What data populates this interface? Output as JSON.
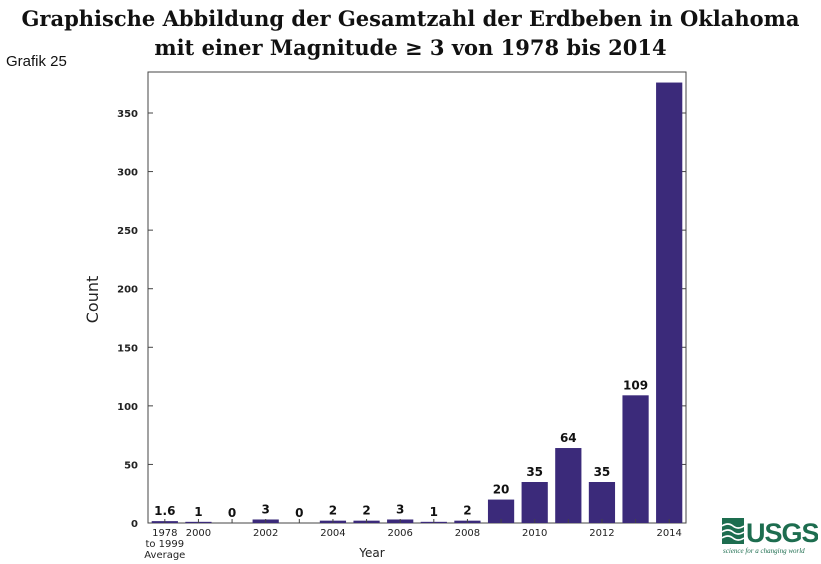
{
  "header": {
    "title_line1": "Graphische Abbildung der Gesamtzahl der Erdbeben in Oklahoma",
    "title_line2": "mit einer Magnitude ≥ 3 von 1978 bis 2014",
    "figure_label": "Grafik 25"
  },
  "logo": {
    "name": "USGS",
    "tagline": "science for a changing world",
    "color": "#1d6d4f"
  },
  "chart_data": {
    "type": "bar",
    "title": "Graphische Abbildung der Gesamtzahl der Erdbeben in Oklahoma mit einer Magnitude ≥ 3 von 1978 bis 2014",
    "xlabel": "Year",
    "ylabel": "Count",
    "ylim": [
      0,
      385
    ],
    "yticks": [
      0,
      50,
      100,
      150,
      200,
      250,
      300,
      350
    ],
    "grid": false,
    "bar_color": "#3b2a7a",
    "categories": [
      "1978 to 1999 Average",
      "2000",
      "2001",
      "2002",
      "2003",
      "2004",
      "2005",
      "2006",
      "2007",
      "2008",
      "2009",
      "2010",
      "2011",
      "2012",
      "2013",
      "2014"
    ],
    "values": [
      1.6,
      1,
      0,
      3,
      0,
      2,
      2,
      3,
      1,
      2,
      20,
      35,
      64,
      35,
      109,
      376
    ],
    "data_labels": [
      "1.6",
      "1",
      "0",
      "3",
      "0",
      "2",
      "2",
      "3",
      "1",
      "2",
      "20",
      "35",
      "64",
      "35",
      "109",
      ""
    ],
    "x_tick_labels": [
      {
        "category": "1978 to 1999 Average",
        "lines": [
          "1978",
          "to 1999",
          "Average"
        ]
      },
      {
        "category": "2000",
        "lines": [
          "2000"
        ]
      },
      {
        "category": "2002",
        "lines": [
          "2002"
        ]
      },
      {
        "category": "2004",
        "lines": [
          "2004"
        ]
      },
      {
        "category": "2006",
        "lines": [
          "2006"
        ]
      },
      {
        "category": "2008",
        "lines": [
          "2008"
        ]
      },
      {
        "category": "2010",
        "lines": [
          "2010"
        ]
      },
      {
        "category": "2012",
        "lines": [
          "2012"
        ]
      },
      {
        "category": "2014",
        "lines": [
          "2014"
        ]
      }
    ]
  }
}
